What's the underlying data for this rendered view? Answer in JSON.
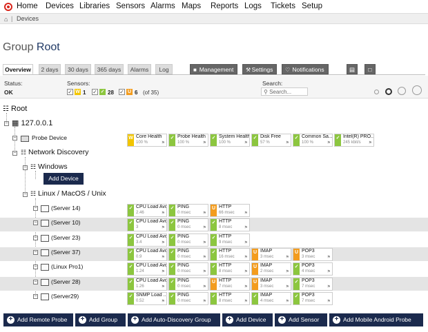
{
  "nav": {
    "items": [
      "Home",
      "Devices",
      "Libraries",
      "Sensors",
      "Alarms",
      "Maps",
      "Reports",
      "Logs",
      "Tickets",
      "Setup"
    ]
  },
  "breadcrumb": {
    "current": "Devices"
  },
  "page": {
    "title_prefix": "Group",
    "title_name": "Root"
  },
  "tabs": {
    "left": [
      "Overview",
      "2 days",
      "30 days",
      "365 days",
      "Alarms",
      "Log"
    ],
    "right": [
      "Management",
      "Settings",
      "Notifications"
    ]
  },
  "status": {
    "status_label": "Status:",
    "status_value": "OK",
    "sensors_label": "Sensors:",
    "warning_count": "1",
    "ok_count": "28",
    "unusual_count": "6",
    "total_text": "(of 35)",
    "search_label": "Search:",
    "search_placeholder": "Search..."
  },
  "tree": {
    "root": "Root",
    "probe": "127.0.0.1",
    "probe_device": "Probe Device",
    "network_discovery": "Network Discovery",
    "windows": "Windows",
    "add_device": "Add Device",
    "linux": "Linux / MacOS / Unix"
  },
  "probe_sensors": [
    {
      "name": "Core Health",
      "value": "100 %",
      "status": "warning"
    },
    {
      "name": "Probe Health",
      "value": "100 %",
      "status": "ok"
    },
    {
      "name": "System Health",
      "value": "100 %",
      "status": "ok"
    },
    {
      "name": "Disk Free",
      "value": "57 %",
      "status": "ok"
    },
    {
      "name": "Common Sa...",
      "value": "100 %",
      "status": "ok"
    },
    {
      "name": "Intel(R) PRO...",
      "value": "245 kbit/s",
      "status": "ok"
    }
  ],
  "devices": [
    {
      "name": "(Server 14)",
      "sensors": [
        {
          "name": "CPU Load Avo...",
          "value": "2.46",
          "status": "ok"
        },
        {
          "name": "PING",
          "value": "0 msec",
          "status": "ok"
        },
        {
          "name": "HTTP",
          "value": "66 msec",
          "status": "unusual"
        }
      ]
    },
    {
      "name": "(Server 10)",
      "sensors": [
        {
          "name": "CPU Load Avo...",
          "value": "3",
          "status": "ok"
        },
        {
          "name": "PING",
          "value": "0 msec",
          "status": "ok"
        },
        {
          "name": "HTTP",
          "value": "8 msec",
          "status": "ok"
        }
      ]
    },
    {
      "name": "(Server 23)",
      "sensors": [
        {
          "name": "CPU Load Avo...",
          "value": "3.4",
          "status": "ok"
        },
        {
          "name": "PING",
          "value": "0 msec",
          "status": "ok"
        },
        {
          "name": "HTTP",
          "value": "9 msec",
          "status": "ok"
        }
      ]
    },
    {
      "name": "(Server 37)",
      "sensors": [
        {
          "name": "CPU Load Avo...",
          "value": "0.9",
          "status": "ok"
        },
        {
          "name": "PING",
          "value": "0 msec",
          "status": "ok"
        },
        {
          "name": "HTTP",
          "value": "16 msec",
          "status": "ok"
        },
        {
          "name": "IMAP",
          "value": "3 msec",
          "status": "unusual"
        },
        {
          "name": "POP3",
          "value": "3 msec",
          "status": "unusual"
        }
      ]
    },
    {
      "name": "(Linux Pro1)",
      "sensors": [
        {
          "name": "CPU Load Avo...",
          "value": "1.24",
          "status": "ok"
        },
        {
          "name": "PING",
          "value": "0 msec",
          "status": "ok"
        },
        {
          "name": "HTTP",
          "value": "8 msec",
          "status": "ok"
        },
        {
          "name": "IMAP",
          "value": "2 msec",
          "status": "unusual"
        },
        {
          "name": "POP3",
          "value": "4 msec",
          "status": "ok"
        }
      ]
    },
    {
      "name": "(Server 28)",
      "sensors": [
        {
          "name": "CPU Load Avo...",
          "value": "1.26",
          "status": "ok"
        },
        {
          "name": "PING",
          "value": "0 msec",
          "status": "ok"
        },
        {
          "name": "HTTP",
          "value": "7 msec",
          "status": "unusual"
        },
        {
          "name": "IMAP",
          "value": "3 msec",
          "status": "unusual"
        },
        {
          "name": "POP3",
          "value": "7 msec",
          "status": "ok"
        }
      ]
    },
    {
      "name": "(Server29)",
      "sensors": [
        {
          "name": "SNMP Load ...",
          "value": "0.52",
          "status": "ok"
        },
        {
          "name": "PING",
          "value": "0 msec",
          "status": "ok"
        },
        {
          "name": "HTTP",
          "value": "8 msec",
          "status": "ok"
        },
        {
          "name": "IMAP",
          "value": "4 msec",
          "status": "ok"
        },
        {
          "name": "POP3",
          "value": "7 msec",
          "status": "ok"
        }
      ]
    }
  ],
  "bottom_buttons": [
    "Add Remote Probe",
    "Add Group",
    "Add Auto-Discovery Group",
    "Add Device",
    "Add Sensor",
    "Add Mobile Android Probe"
  ],
  "colors": {
    "ok": "#8cc63f",
    "warning": "#f2c500",
    "unusual": "#f39c1e",
    "nav_dark": "#1b2a4d"
  },
  "icons": {
    "home": "home-icon",
    "search": "search-icon",
    "wrench": "wrench-icon",
    "bell": "bell-icon",
    "flag": "flag-icon"
  }
}
